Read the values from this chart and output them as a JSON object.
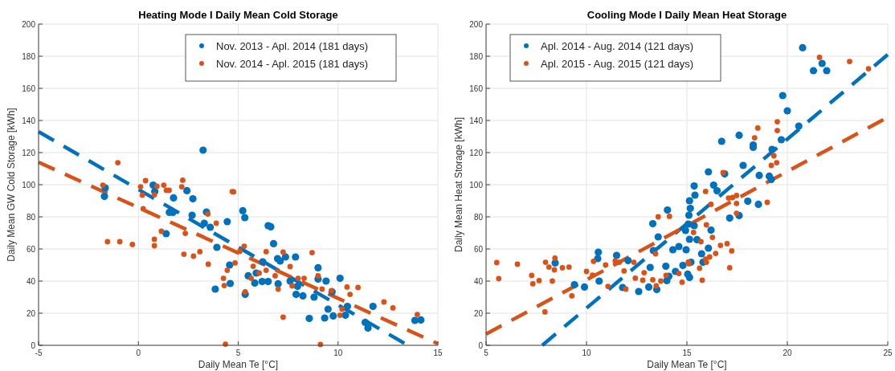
{
  "chart_data": [
    {
      "type": "scatter",
      "title": "Heating Mode I Daily Mean Cold Storage",
      "xlabel": "Daily Mean Te [°C]",
      "ylabel": "Daily Mean GW Cold Storage [kWh]",
      "xlim": [
        -5,
        15
      ],
      "ylim": [
        0,
        200
      ],
      "xticks": [
        -5,
        0,
        5,
        10,
        15
      ],
      "yticks": [
        0,
        20,
        40,
        60,
        80,
        100,
        120,
        140,
        160,
        180,
        200
      ],
      "grid": true,
      "legend": "top right",
      "marker": "circle",
      "series": [
        {
          "name": "Nov. 2013 - Apl. 2014 (181 days)",
          "color": "#0072bd",
          "x": [
            -1.66,
            -1.7,
            3.24,
            0.74,
            0.82,
            2.43,
            1.76,
            2.73,
            1.55,
            1.73,
            1.39,
            3.41,
            2.69,
            3.3,
            3.6,
            3.85,
            4.6,
            4.57,
            3.93,
            4.45,
            5.23,
            5.33,
            6.5,
            6.63,
            6.77,
            7.87,
            9.0,
            9.0,
            8.8,
            8.56,
            9.33,
            9.5,
            9.76,
            10.37,
            10.47,
            11.75,
            11.36,
            11.5,
            13.85,
            14.15,
            5.35,
            5.83,
            6.2,
            6.5,
            7.0,
            7.9,
            8.24,
            7.97,
            7.6,
            9.4,
            9.7,
            10.1,
            7.1,
            7.37,
            6.97,
            6.23,
            5.9,
            5.5
          ],
          "values": [
            98,
            92.7,
            121.5,
            99.7,
            95.8,
            96.3,
            91.8,
            91.2,
            82.8,
            82.8,
            69.5,
            83,
            81,
            76,
            73.5,
            35,
            38.5,
            50,
            61,
            77,
            83.8,
            79.5,
            74.5,
            73.8,
            63.3,
            55,
            48.3,
            41.2,
            30,
            16.7,
            17,
            22.5,
            18.3,
            18.7,
            24.2,
            24.2,
            14.2,
            10.8,
            15.5,
            15.8,
            31.7,
            38.8,
            39.7,
            39.7,
            38.3,
            31.7,
            30.8,
            36.7,
            40,
            40,
            33.3,
            41.7,
            52.5,
            55,
            54,
            52,
            45,
            43.3
          ]
        },
        {
          "name": "Nov. 2014 - Apl. 2015 (181 days)",
          "color": "#d95319",
          "x": [
            -1.78,
            -1.03,
            -1.55,
            -0.93,
            -0.3,
            0.11,
            0.36,
            0.2,
            0.24,
            0.8,
            0.93,
            1.27,
            1.4,
            1.54,
            0.8,
            0.8,
            1.15,
            2.22,
            2.17,
            3.48,
            2.35,
            2.28,
            2.76,
            3.08,
            3.5,
            4.26,
            4.3,
            4.36,
            4.7,
            3.9,
            4.45,
            4.77,
            8.7,
            7.25,
            9.0,
            9.2,
            9.67,
            10.45,
            11.0,
            10.6,
            10.1,
            10.2,
            12.3,
            12.75,
            13.97,
            9.12,
            7.25,
            7.0,
            5.65,
            5.35,
            4.84,
            5.08,
            5.3,
            6.05,
            6.4,
            6.85,
            7.7,
            8.0,
            6.4,
            5.75,
            7.6,
            8.3
          ],
          "values": [
            99.7,
            113.7,
            64.5,
            64.5,
            62.8,
            98.7,
            102.5,
            93.5,
            85,
            93.7,
            99,
            99.7,
            96.5,
            96.5,
            66,
            62,
            71,
            102.8,
            98.7,
            81.7,
            69.7,
            56.7,
            55.5,
            58.3,
            50.5,
            41.7,
            37.2,
            0.7,
            95.7,
            76,
            46.7,
            95.5,
            57.7,
            58,
            43.3,
            35,
            34,
            36.3,
            36,
            31.7,
            18.7,
            22.5,
            27,
            23.3,
            19.2,
            0.5,
            17.5,
            35,
            41.7,
            33.3,
            51.3,
            58.5,
            61.7,
            45,
            46.7,
            43.3,
            37,
            41.7,
            58.3,
            49.2,
            49,
            41.7
          ]
        },
        {
          "type": "line",
          "line_style": "dashed",
          "marker": "none",
          "color": "#0072bd",
          "x": [
            -5,
            13.5
          ],
          "values": [
            133,
            0
          ]
        },
        {
          "type": "line",
          "line_style": "dashed",
          "marker": "none",
          "color": "#d95319",
          "x": [
            -5,
            15
          ],
          "values": [
            114,
            1
          ]
        }
      ]
    },
    {
      "type": "scatter",
      "title": "Cooling Mode I Daily Mean Heat Storage",
      "xlabel": "Daily Mean Te [°C]",
      "ylabel": "Daily Mean Heat Storage [kWh]",
      "xlim": [
        5,
        25
      ],
      "ylim": [
        0,
        200
      ],
      "xticks": [
        5,
        10,
        15,
        20,
        25
      ],
      "yticks": [
        0,
        20,
        40,
        60,
        80,
        100,
        120,
        140,
        160,
        180,
        200
      ],
      "grid": true,
      "legend": "top left",
      "marker": "circle",
      "series": [
        {
          "name": "Apl. 2014 - Aug. 2014 (121 days)",
          "color": "#0072bd",
          "x": [
            8.44,
            9.4,
            9.9,
            10.56,
            10.59,
            10.63,
            11.5,
            11.8,
            12.07,
            12.6,
            13.1,
            13.17,
            13.3,
            13.33,
            13.5,
            13.57,
            14.0,
            14.03,
            14.1,
            14.3,
            14.43,
            14.6,
            14.8,
            15.04,
            15.13,
            15.1,
            15.13,
            14.93,
            13.95,
            20.76,
            21.3,
            21.73,
            21.96,
            19.77,
            20.0,
            20.57,
            19.7,
            19.24,
            18.3,
            18.3,
            17.6,
            16.73,
            17.8,
            16.07,
            16.88,
            18.6,
            19.1,
            19.2,
            15.36,
            15.4,
            16.33,
            16.5,
            18.03,
            18.56,
            15.17,
            17.13,
            17.6,
            15.07,
            15.36,
            16.2,
            15.5,
            16.07,
            15.73,
            15.8,
            15.2,
            15.13,
            14.96
          ],
          "values": [
            51.3,
            37.7,
            36.3,
            54,
            58,
            40,
            56,
            36,
            52.7,
            33.5,
            36.3,
            48.5,
            75.7,
            59,
            34.7,
            67.5,
            40.3,
            84.2,
            43,
            59.5,
            46,
            61.5,
            49.7,
            44.3,
            90,
            81,
            66,
            71.5,
            49.2,
            185.3,
            171,
            175.5,
            171,
            155.5,
            146,
            136.5,
            128,
            122,
            124.7,
            123.3,
            130.8,
            127,
            112,
            108,
            106.7,
            105.8,
            105.3,
            103.3,
            99.2,
            93.5,
            99.7,
            96.2,
            89.7,
            87.8,
            85.2,
            79.2,
            80.8,
            75.5,
            74.5,
            71.7,
            65.8,
            60.5,
            57,
            51.7,
            51.7,
            42.2,
            59.5
          ]
        },
        {
          "name": "Apl. 2015 - Aug. 2015 (121 days)",
          "color": "#d95319",
          "x": [
            5.53,
            5.63,
            6.56,
            7.27,
            7.33,
            7.64,
            7.96,
            8.13,
            8.3,
            8.4,
            8.43,
            8.8,
            9.13,
            7.93,
            9.27,
            10.0,
            10.35,
            10.3,
            10.95,
            11.07,
            11.43,
            11.63,
            11.87,
            11.96,
            12.36,
            12.43,
            12.8,
            12.87,
            13.3,
            13.47,
            13.44,
            13.57,
            13.7,
            14.13,
            13.96,
            14.6,
            14.76,
            15.07,
            21.6,
            23.1,
            24.04,
            18.53,
            18.37,
            19.5,
            19.5,
            19.33,
            19.47,
            19.2,
            16.8,
            15.93,
            16.2,
            17.27,
            17.47,
            17.07,
            17.47,
            17.47,
            19.0,
            15.97,
            15.33,
            16.27,
            15.7,
            16.67,
            17.0,
            17.23,
            16.43,
            16.13,
            15.93,
            15.97,
            15.1,
            15.63,
            17.13,
            15.76
          ],
          "values": [
            51.5,
            41.5,
            50.5,
            43.5,
            38.3,
            40.3,
            51.7,
            48.7,
            40,
            47,
            54.3,
            48.3,
            48.7,
            20.8,
            30.8,
            46,
            52.3,
            43.7,
            50,
            36.7,
            52.5,
            51.7,
            46.3,
            35,
            51.7,
            41.8,
            40.5,
            45.2,
            40.8,
            37,
            57,
            80,
            40,
            80.3,
            43.5,
            44.7,
            39.3,
            51.8,
            179.3,
            176.7,
            172.2,
            135.3,
            129.2,
            139.2,
            133.7,
            118,
            113.7,
            112,
            107.5,
            95.8,
            87.8,
            92,
            93.3,
            91.7,
            88.3,
            82.2,
            89,
            75,
            70.3,
            67.2,
            64.5,
            62.2,
            63.3,
            58.8,
            57.2,
            55,
            53.7,
            51.7,
            50.8,
            48,
            48.3,
            40.5
          ]
        },
        {
          "type": "line",
          "line_style": "dashed",
          "marker": "none",
          "color": "#0072bd",
          "x": [
            7.8,
            25
          ],
          "values": [
            0,
            181
          ]
        },
        {
          "type": "line",
          "line_style": "dashed",
          "marker": "none",
          "color": "#d95319",
          "x": [
            5,
            25
          ],
          "values": [
            7,
            142
          ]
        }
      ]
    }
  ]
}
